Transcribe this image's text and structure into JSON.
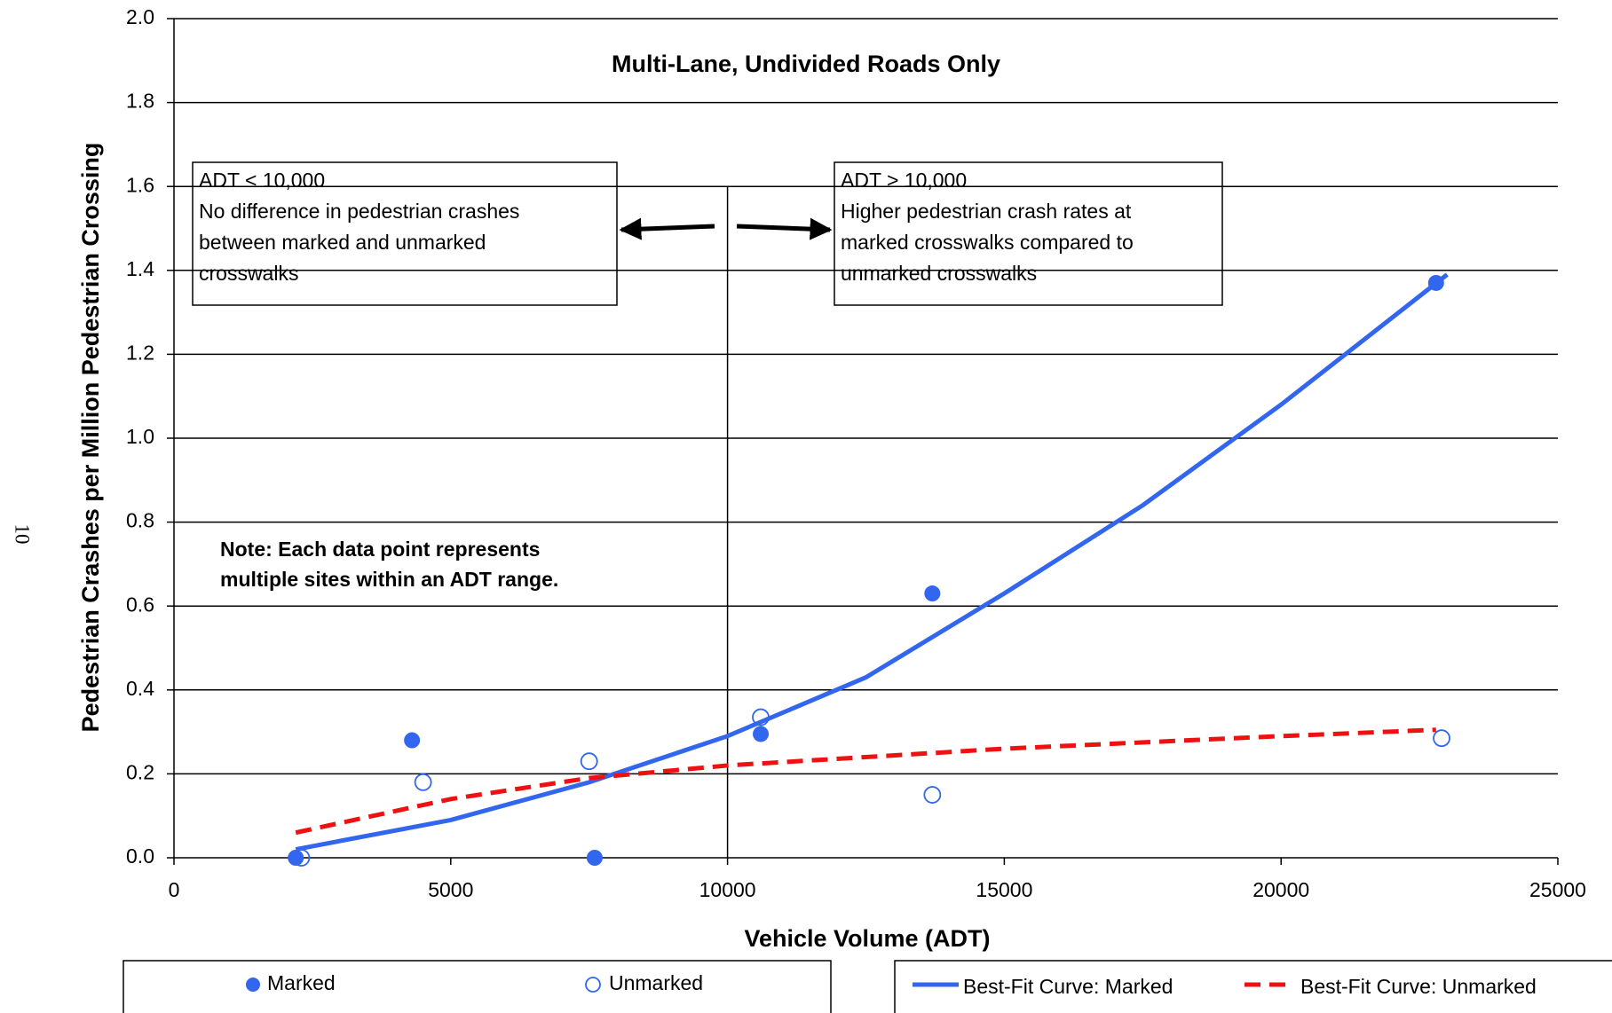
{
  "page_number": "10",
  "chart_data": {
    "type": "scatter",
    "title": "Multi-Lane, Undivided Roads Only",
    "x_label": "Vehicle Volume (ADT)",
    "y_label": "Pedestrian Crashes per Million Pedestrian Crossing",
    "xlim": [
      0,
      25000
    ],
    "xticks": [
      0,
      5000,
      10000,
      15000,
      20000,
      25000
    ],
    "ylim": [
      0,
      2.0
    ],
    "yticks": [
      {
        "value": 0,
        "label": "0.0"
      },
      {
        "value": 0.2,
        "label": "0.2"
      },
      {
        "value": 0.4,
        "label": "0.4"
      },
      {
        "value": 0.6,
        "label": "0.6"
      },
      {
        "value": 0.8,
        "label": "0.8"
      },
      {
        "value": 1.0,
        "label": "1.0"
      },
      {
        "value": 1.2,
        "label": "1.2"
      },
      {
        "value": 1.4,
        "label": "1.4"
      },
      {
        "value": 1.6,
        "label": "1.6"
      },
      {
        "value": 1.8,
        "label": "1.8"
      },
      {
        "value": 2.0,
        "label": "2.0"
      }
    ],
    "grid": true,
    "reference_line": {
      "x": 10000,
      "y_top": 1.6
    },
    "annotations": [
      {
        "lines": [
          "ADT < 10,000",
          "No difference in pedestrian crashes",
          "between marked and unmarked",
          "crosswalks"
        ]
      },
      {
        "lines": [
          "ADT > 10,000",
          "Higher pedestrian crash rates at",
          "marked crosswalks compared to",
          "unmarked crosswalks"
        ]
      }
    ],
    "note": [
      "Note:  Each data point represents",
      "multiple sites within an ADT range."
    ],
    "series": [
      {
        "name": "Marked",
        "color": "#3366ee",
        "marker": "filled",
        "x": [
          2200,
          4300,
          7600,
          10600,
          13700,
          22800
        ],
        "values": [
          0,
          0.28,
          0,
          0.295,
          0.63,
          1.37
        ]
      },
      {
        "name": "Unmarked",
        "color": "#3366ee",
        "marker": "open",
        "x": [
          2300,
          4500,
          7500,
          10600,
          13700,
          22900
        ],
        "values": [
          0,
          0.18,
          0.23,
          0.335,
          0.15,
          0.285
        ]
      },
      {
        "name": "Best-Fit Curve: Marked",
        "color": "#3366ee",
        "marker": "line",
        "x": [
          2200,
          5000,
          7500,
          10000,
          12500,
          15000,
          17500,
          20000,
          23000
        ],
        "values": [
          0.02,
          0.09,
          0.18,
          0.29,
          0.43,
          0.63,
          0.84,
          1.08,
          1.39
        ]
      },
      {
        "name": "Best-Fit Curve: Unmarked",
        "color": "#ee1111",
        "marker": "dash",
        "x": [
          2200,
          5000,
          7500,
          10000,
          15000,
          20000,
          22800
        ],
        "values": [
          0.06,
          0.14,
          0.19,
          0.22,
          0.26,
          0.29,
          0.305
        ]
      }
    ]
  }
}
